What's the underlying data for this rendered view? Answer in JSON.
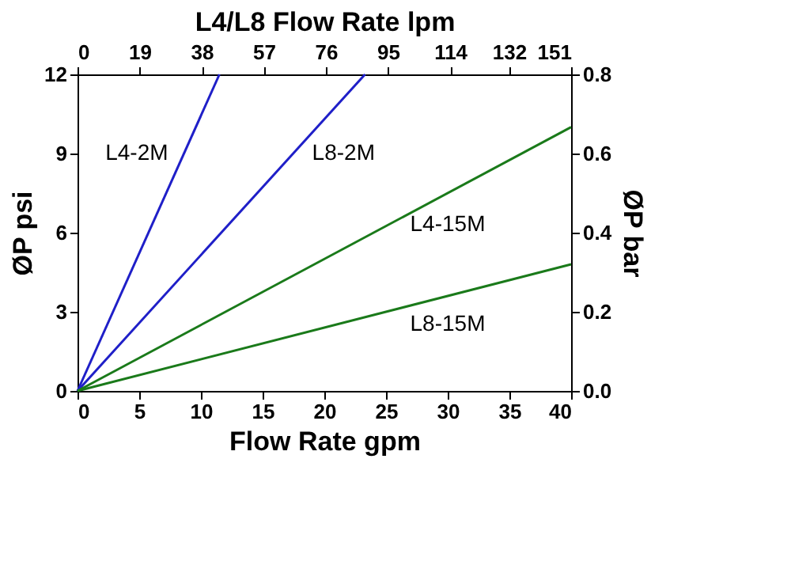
{
  "chart_data": {
    "type": "line",
    "xlabel": "Flow Rate gpm",
    "ylabel": "ØP psi",
    "y2label": "ØP bar",
    "x2label": "L4/L8  Flow Rate lpm",
    "xlim": [
      0,
      40
    ],
    "xticks": [
      0,
      5,
      10,
      15,
      20,
      25,
      30,
      35,
      40
    ],
    "x2lim": [
      0,
      151
    ],
    "x2ticks": [
      0,
      19,
      38,
      57,
      76,
      95,
      114,
      132,
      151
    ],
    "ylim": [
      0,
      12
    ],
    "yticks": [
      0,
      3,
      6,
      9,
      12
    ],
    "y2lim": [
      0,
      0.8
    ],
    "y2ticks": [
      {
        "value": 0,
        "label": "0.0"
      },
      {
        "value": 0.2,
        "label": "0.2"
      },
      {
        "value": 0.4,
        "label": "0.4"
      },
      {
        "value": 0.6,
        "label": "0.6"
      },
      {
        "value": 0.8,
        "label": "0.8"
      }
    ],
    "series": [
      {
        "name": "L4-2M",
        "color": "#1f1fc8",
        "x": [
          0,
          11.5
        ],
        "values": [
          0,
          12
        ]
      },
      {
        "name": "L8-2M",
        "color": "#1f1fc8",
        "x": [
          0,
          23.3
        ],
        "values": [
          0,
          12
        ]
      },
      {
        "name": "L4-15M",
        "color": "#1a7a1a",
        "x": [
          0,
          40
        ],
        "values": [
          0,
          10
        ]
      },
      {
        "name": "L8-15M",
        "color": "#1a7a1a",
        "x": [
          0,
          25,
          40
        ],
        "values": [
          0,
          3.0,
          4.8
        ]
      }
    ],
    "grid": false,
    "legend": false
  }
}
